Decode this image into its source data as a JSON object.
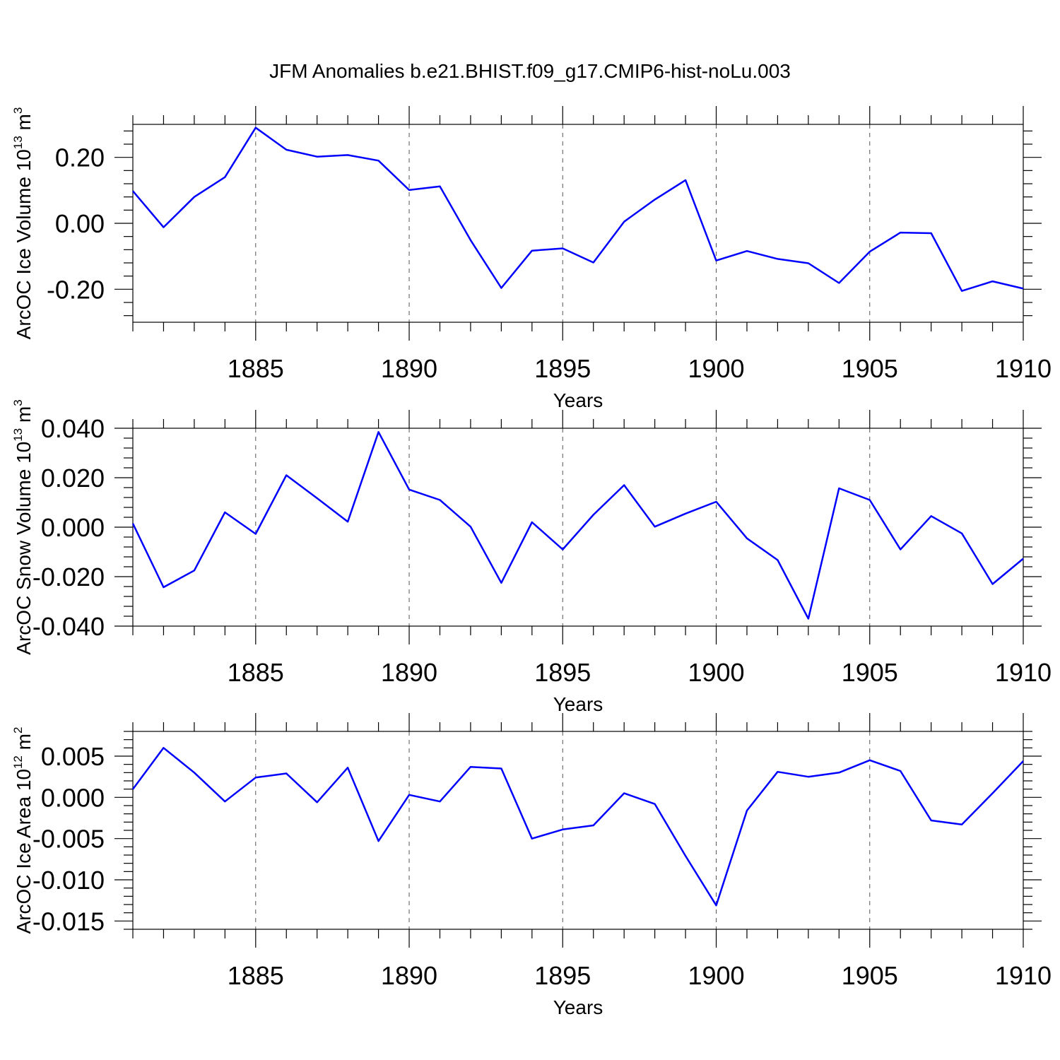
{
  "title": "JFM Anomalies b.e21.BHIST.f09_g17.CMIP6-hist-noLu.003",
  "line_color": "#0000ff",
  "chart_data": [
    {
      "type": "line",
      "ylabel": {
        "text": "ArcOC Ice Volume 10",
        "exponent": "13",
        "unit": " m",
        "unit_exponent": "3"
      },
      "xlabel": "Years",
      "xlim": [
        1881,
        1910
      ],
      "ylim": [
        -0.3,
        0.3
      ],
      "yticks": [
        -0.2,
        0.0,
        0.2
      ],
      "yticklabels": [
        "-0.20",
        "0.00",
        "0.20"
      ],
      "xticks": [
        1885,
        1890,
        1895,
        1900,
        1905,
        1910
      ],
      "xticklabels": [
        "1885",
        "1890",
        "1895",
        "1900",
        "1905",
        "1910"
      ],
      "x": [
        1881,
        1882,
        1883,
        1884,
        1885,
        1886,
        1887,
        1888,
        1889,
        1890,
        1891,
        1892,
        1893,
        1894,
        1895,
        1896,
        1897,
        1898,
        1899,
        1900,
        1901,
        1902,
        1903,
        1904,
        1905,
        1906,
        1907,
        1908,
        1909,
        1910
      ],
      "values": [
        0.098,
        -0.012,
        0.08,
        0.14,
        0.29,
        0.223,
        0.202,
        0.207,
        0.19,
        0.101,
        0.112,
        -0.051,
        -0.196,
        -0.083,
        -0.076,
        -0.119,
        0.005,
        0.072,
        0.131,
        -0.113,
        -0.084,
        -0.108,
        -0.121,
        -0.181,
        -0.086,
        -0.028,
        -0.03,
        -0.205,
        -0.176,
        -0.198
      ]
    },
    {
      "type": "line",
      "ylabel": {
        "text": "ArcOC Snow Volume 10",
        "exponent": "13",
        "unit": " m",
        "unit_exponent": "3"
      },
      "xlabel": "Years",
      "xlim": [
        1881,
        1910
      ],
      "ylim": [
        -0.04,
        0.04
      ],
      "yticks": [
        -0.04,
        -0.02,
        0.0,
        0.02,
        0.04
      ],
      "yticklabels": [
        "-0.040",
        "-0.020",
        "0.000",
        "0.020",
        "0.040"
      ],
      "xticks": [
        1885,
        1890,
        1895,
        1900,
        1905,
        1910
      ],
      "xticklabels": [
        "1885",
        "1890",
        "1895",
        "1900",
        "1905",
        "1910"
      ],
      "x": [
        1881,
        1882,
        1883,
        1884,
        1885,
        1886,
        1887,
        1888,
        1889,
        1890,
        1891,
        1892,
        1893,
        1894,
        1895,
        1896,
        1897,
        1898,
        1899,
        1900,
        1901,
        1902,
        1903,
        1904,
        1905,
        1906,
        1907,
        1908,
        1909,
        1910
      ],
      "values": [
        0.0015,
        -0.0243,
        -0.0175,
        0.006,
        -0.0027,
        0.021,
        0.0117,
        0.0022,
        0.0385,
        0.0152,
        0.011,
        0.0002,
        -0.0225,
        0.002,
        -0.009,
        0.005,
        0.017,
        0.0002,
        0.0055,
        0.0103,
        -0.0045,
        -0.0133,
        -0.037,
        0.0157,
        0.011,
        -0.009,
        0.0045,
        -0.0025,
        -0.023,
        -0.0127
      ]
    },
    {
      "type": "line",
      "ylabel": {
        "text": "ArcOC Ice Area 10",
        "exponent": "12",
        "unit": " m",
        "unit_exponent": "2"
      },
      "xlabel": "Years",
      "xlim": [
        1881,
        1910
      ],
      "ylim": [
        -0.016,
        0.008
      ],
      "yticks": [
        -0.015,
        -0.01,
        -0.005,
        0.0,
        0.005
      ],
      "yticklabels": [
        "-0.015",
        "-0.010",
        "-0.005",
        "0.000",
        "0.005"
      ],
      "xticks": [
        1885,
        1890,
        1895,
        1900,
        1905,
        1910
      ],
      "xticklabels": [
        "1885",
        "1890",
        "1895",
        "1900",
        "1905",
        "1910"
      ],
      "x": [
        1881,
        1882,
        1883,
        1884,
        1885,
        1886,
        1887,
        1888,
        1889,
        1890,
        1891,
        1892,
        1893,
        1894,
        1895,
        1896,
        1897,
        1898,
        1899,
        1900,
        1901,
        1902,
        1903,
        1904,
        1905,
        1906,
        1907,
        1908,
        1909,
        1910
      ],
      "values": [
        0.001,
        0.006,
        0.003,
        -0.0005,
        0.0024,
        0.0029,
        -0.0006,
        0.0036,
        -0.0053,
        0.0003,
        -0.0005,
        0.0037,
        0.0035,
        -0.005,
        -0.0039,
        -0.0034,
        0.0005,
        -0.0008,
        -0.0071,
        -0.0131,
        -0.0016,
        0.0031,
        0.0025,
        0.003,
        0.0045,
        0.0032,
        -0.0028,
        -0.0033,
        0.0005,
        0.0044
      ]
    }
  ]
}
